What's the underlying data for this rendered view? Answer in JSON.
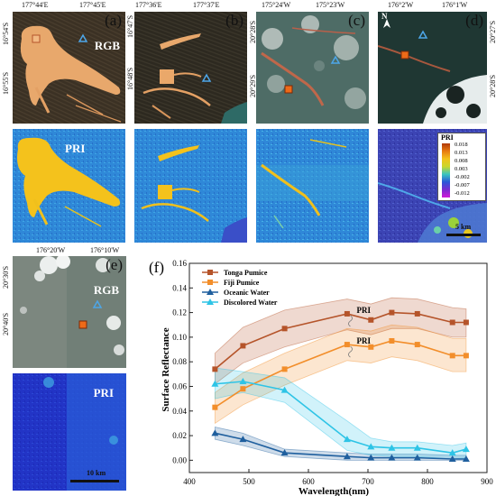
{
  "figure": {
    "panel_labels": [
      "(a)",
      "(b)",
      "(c)",
      "(d)",
      "(e)",
      "(f)"
    ],
    "rgb_label": "RGB",
    "pri_label": "PRI",
    "north_label": "N",
    "scale_d": "5 km",
    "scale_e": "10 km"
  },
  "coords": {
    "a": {
      "top": [
        "177°44'E",
        "177°45'E"
      ],
      "left": [
        "16°54'S",
        "16°55'S"
      ]
    },
    "b": {
      "top": [
        "177°36'E",
        "177°37'E"
      ],
      "left": [
        "16°47'S",
        "16°48'S"
      ]
    },
    "c": {
      "top": [
        "175°24'W",
        "175°23'W"
      ],
      "left": [
        "20°28'S",
        "20°29'S"
      ]
    },
    "d": {
      "top": [
        "176°2'W",
        "176°1'W"
      ],
      "right": [
        "20°27'S",
        "20°28'S"
      ]
    },
    "e": {
      "top": [
        "176°20'W",
        "176°10'W"
      ],
      "left": [
        "20°30'S",
        "20°40'S"
      ]
    }
  },
  "colorbar": {
    "title": "PRI",
    "ticks": [
      "0.018",
      "0.013",
      "0.008",
      "0.003",
      "-0.002",
      "-0.007",
      "-0.012"
    ],
    "colors": [
      "#b03a0a",
      "#e87a10",
      "#f3c21a",
      "#c9d72a",
      "#38c4c0",
      "#2a56d8",
      "#7a2ad0",
      "#d01ad8"
    ]
  },
  "colors": {
    "tonga": "#b5542a",
    "fiji": "#f28e2b",
    "oceanic": "#1f5f9e",
    "discolored": "#2ec4e6",
    "pumice_marker": "#ee6a18",
    "water_marker": "#4da6e8"
  },
  "chart_data": {
    "type": "line",
    "title": "",
    "panel_label": "(f)",
    "xlabel": "Wavelength(nm)",
    "ylabel": "Surface Reflectance",
    "xlim": [
      400,
      900
    ],
    "ylim": [
      -0.01,
      0.16
    ],
    "xticks": [
      400,
      500,
      600,
      700,
      800,
      900
    ],
    "yticks": [
      0.0,
      0.02,
      0.04,
      0.06,
      0.08,
      0.1,
      0.12,
      0.14,
      0.16
    ],
    "grid": false,
    "legend_position": "top-left",
    "x": [
      443,
      490,
      560,
      665,
      705,
      740,
      783,
      842,
      865
    ],
    "series": [
      {
        "name": "Tonga Pumice",
        "marker": "square",
        "color": "#b5542a",
        "values": [
          0.074,
          0.093,
          0.107,
          0.119,
          0.114,
          0.12,
          0.119,
          0.112,
          0.112
        ],
        "upper": [
          0.087,
          0.108,
          0.122,
          0.131,
          0.127,
          0.132,
          0.131,
          0.124,
          0.123
        ],
        "lower": [
          0.062,
          0.079,
          0.092,
          0.106,
          0.102,
          0.107,
          0.107,
          0.1,
          0.1
        ],
        "annotation": {
          "label": "PRI",
          "x": 675,
          "y": 0.119
        }
      },
      {
        "name": "Fiji Pumice",
        "marker": "square",
        "color": "#f28e2b",
        "values": [
          0.043,
          0.058,
          0.074,
          0.094,
          0.092,
          0.097,
          0.094,
          0.085,
          0.085
        ],
        "upper": [
          0.055,
          0.071,
          0.087,
          0.107,
          0.105,
          0.11,
          0.108,
          0.099,
          0.099
        ],
        "lower": [
          0.03,
          0.045,
          0.061,
          0.081,
          0.079,
          0.084,
          0.081,
          0.072,
          0.072
        ],
        "annotation": {
          "label": "PRI",
          "x": 675,
          "y": 0.094
        }
      },
      {
        "name": "Oceanic Water",
        "marker": "triangle",
        "color": "#1f5f9e",
        "values": [
          0.022,
          0.017,
          0.006,
          0.003,
          0.002,
          0.002,
          0.002,
          0.001,
          0.001
        ],
        "upper": [
          0.027,
          0.022,
          0.009,
          0.006,
          0.005,
          0.005,
          0.005,
          0.004,
          0.004
        ],
        "lower": [
          0.017,
          0.012,
          0.003,
          0.0,
          0.0,
          0.0,
          0.0,
          0.0,
          0.0
        ]
      },
      {
        "name": "Discolored Water",
        "marker": "triangle",
        "color": "#2ec4e6",
        "values": [
          0.062,
          0.064,
          0.057,
          0.017,
          0.011,
          0.01,
          0.01,
          0.006,
          0.009
        ],
        "upper": [
          0.075,
          0.072,
          0.067,
          0.032,
          0.018,
          0.015,
          0.015,
          0.012,
          0.014
        ],
        "lower": [
          0.05,
          0.055,
          0.047,
          0.008,
          0.004,
          0.003,
          0.003,
          0.001,
          0.002
        ]
      }
    ]
  }
}
